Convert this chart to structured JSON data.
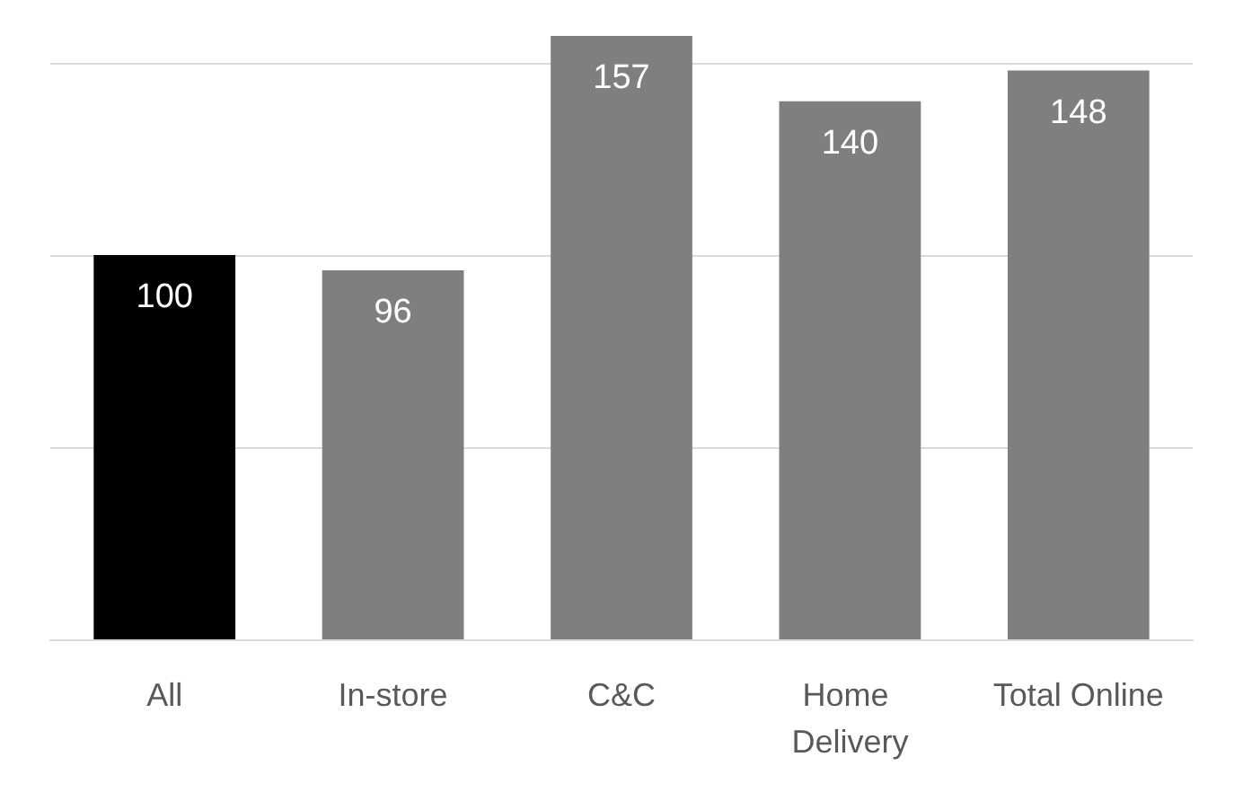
{
  "chart_data": {
    "type": "bar",
    "categories": [
      "All",
      "In-store",
      "C&C",
      "Home Delivery",
      "Total Online"
    ],
    "values": [
      100,
      96,
      157,
      140,
      148
    ],
    "colors": [
      "#000000",
      "#7f7f7f",
      "#7f7f7f",
      "#7f7f7f",
      "#7f7f7f"
    ],
    "yticks": [
      0,
      50,
      100,
      150
    ],
    "grid": "y",
    "tick_labels": "x",
    "data_labels": true
  }
}
